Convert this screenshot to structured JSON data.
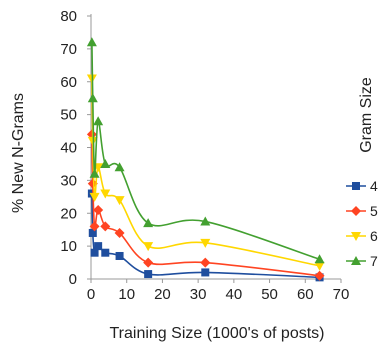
{
  "chart_data": {
    "type": "line",
    "title": "",
    "xlabel": "Training Size (1000's of posts)",
    "ylabel": "% New N-Grams",
    "xlim": [
      0,
      70
    ],
    "ylim": [
      0,
      80
    ],
    "xticks": [
      0,
      10,
      20,
      30,
      40,
      50,
      60,
      70
    ],
    "yticks": [
      0,
      10,
      20,
      30,
      40,
      50,
      60,
      70,
      80
    ],
    "grid": false,
    "legend": {
      "title": "Gram Size",
      "position": "right"
    },
    "x": [
      0.25,
      0.5,
      1,
      2,
      4,
      8,
      16,
      32,
      64
    ],
    "series": [
      {
        "name": "4",
        "color": "#1f4e9e",
        "marker": "square",
        "values": [
          26,
          14,
          8,
          10,
          8,
          7,
          1.5,
          2,
          0.5
        ]
      },
      {
        "name": "5",
        "color": "#ff4422",
        "marker": "diamond",
        "values": [
          44,
          29,
          16,
          21,
          16,
          14,
          5,
          5,
          1
        ]
      },
      {
        "name": "6",
        "color": "#ffd700",
        "marker": "triangle-down",
        "values": [
          61,
          42,
          25,
          34,
          26,
          24,
          10,
          11,
          4
        ]
      },
      {
        "name": "7",
        "color": "#43a030",
        "marker": "triangle",
        "values": [
          72,
          55,
          32,
          48,
          35,
          34,
          17,
          17.5,
          6
        ]
      }
    ]
  }
}
